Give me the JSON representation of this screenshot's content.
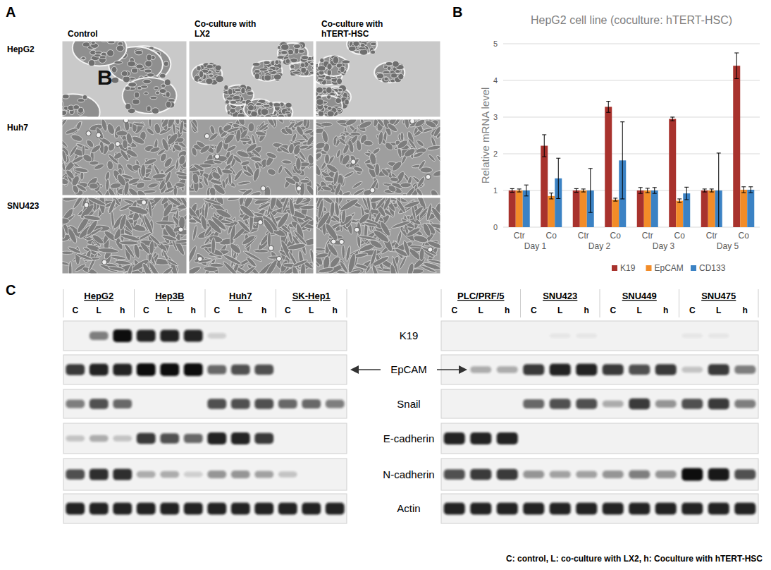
{
  "panel_labels": [
    "A",
    "B",
    "C"
  ],
  "panel_a": {
    "columns": [
      [
        "Control"
      ],
      [
        "Co-culture with",
        "LX2"
      ],
      [
        "Co-culture with",
        "hTERT-HSC"
      ]
    ],
    "rows": [
      "HepG2",
      "Huh7",
      "SNU423"
    ],
    "inset_text": "B"
  },
  "chart_data": {
    "type": "bar",
    "title": "HepG2 cell line (coculture: hTERT-HSC)",
    "y_label": "Relative mRNA level",
    "categories": [
      "Ctr",
      "Co",
      "Ctr",
      "Co",
      "Ctr",
      "Co",
      "Ctr",
      "Co"
    ],
    "groups": [
      "Day 1",
      "Day 2",
      "Day 3",
      "Day 5"
    ],
    "series": [
      {
        "name": "K19",
        "color": "#a8322d",
        "values": [
          1,
          2.22,
          1,
          3.28,
          1,
          2.95,
          1,
          4.4
        ],
        "errors": [
          0.05,
          0.3,
          0.05,
          0.15,
          0.08,
          0.05,
          0.04,
          0.35
        ]
      },
      {
        "name": "EpCAM",
        "color": "#f28c28",
        "values": [
          1,
          0.85,
          1,
          0.75,
          1,
          0.72,
          1,
          1.02
        ],
        "errors": [
          0.04,
          0.08,
          0.04,
          0.04,
          0.06,
          0.05,
          0.04,
          0.08
        ]
      },
      {
        "name": "CD133",
        "color": "#3b82c4",
        "values": [
          1,
          1.33,
          1,
          1.82,
          1,
          0.92,
          1,
          1.02
        ],
        "errors": [
          0.15,
          0.55,
          0.6,
          1.05,
          0.08,
          0.17,
          1.02,
          0.08
        ]
      }
    ],
    "ylim": [
      0,
      5
    ],
    "yticks": [
      0,
      1,
      2,
      3,
      4,
      5
    ],
    "grid": true,
    "legend": "bottom"
  },
  "blot": {
    "antibodies": [
      "K19",
      "EpCAM",
      "Snail",
      "E-cadherin",
      "N-cadherin",
      "Actin"
    ],
    "lanes": [
      "C",
      "L",
      "h"
    ],
    "footnote": "C: control, L: co-culture with LX2, h: Coculture with hTERT-HSC",
    "blocks": [
      {
        "cell_lines": [
          "HepG2",
          "Hep3B",
          "Huh7",
          "SK-Hep1"
        ],
        "bands": [
          [
            0,
            0.5,
            1,
            0.9,
            0.9,
            0.9,
            0.15,
            0,
            0,
            0,
            0,
            0
          ],
          [
            0.8,
            0.9,
            0.9,
            1,
            1,
            1,
            0.6,
            0.7,
            0.7,
            0,
            0,
            0
          ],
          [
            0.5,
            0.7,
            0.6,
            0,
            0,
            0,
            0.7,
            0.7,
            0.7,
            0.6,
            0.6,
            0.5
          ],
          [
            0.2,
            0.3,
            0.2,
            0.8,
            0.7,
            0.6,
            0.9,
            0.9,
            0.8,
            0,
            0,
            0
          ],
          [
            0.7,
            0.85,
            0.85,
            0.3,
            0.3,
            0.15,
            0.4,
            0.4,
            0.35,
            0.2,
            0,
            0
          ],
          [
            0.9,
            0.9,
            0.9,
            0.9,
            0.9,
            0.9,
            0.9,
            0.9,
            0.9,
            0.9,
            0.9,
            0.9
          ]
        ]
      },
      {
        "cell_lines": [
          "PLC/PRF/5",
          "SNU423",
          "SNU449",
          "SNU475"
        ],
        "bands": [
          [
            0,
            0,
            0,
            0,
            0.05,
            0.05,
            0,
            0,
            0,
            0.05,
            0.05,
            0
          ],
          [
            0,
            0.3,
            0.3,
            0.8,
            0.9,
            0.9,
            0.8,
            0.7,
            0.8,
            0.2,
            0.8,
            0.5
          ],
          [
            0,
            0,
            0,
            0.6,
            0.7,
            0.7,
            0.3,
            0.8,
            0.4,
            0.7,
            0.8,
            0.5
          ],
          [
            0.9,
            0.9,
            0.9,
            0,
            0,
            0,
            0,
            0,
            0,
            0,
            0,
            0
          ],
          [
            0.7,
            0.8,
            0.8,
            0.4,
            0.35,
            0.35,
            0.4,
            0.5,
            0.4,
            1,
            0.95,
            0.7
          ],
          [
            0.9,
            0.9,
            0.9,
            0.9,
            0.9,
            0.9,
            0.9,
            0.9,
            0.9,
            0.9,
            0.9,
            0.9
          ]
        ]
      }
    ]
  }
}
